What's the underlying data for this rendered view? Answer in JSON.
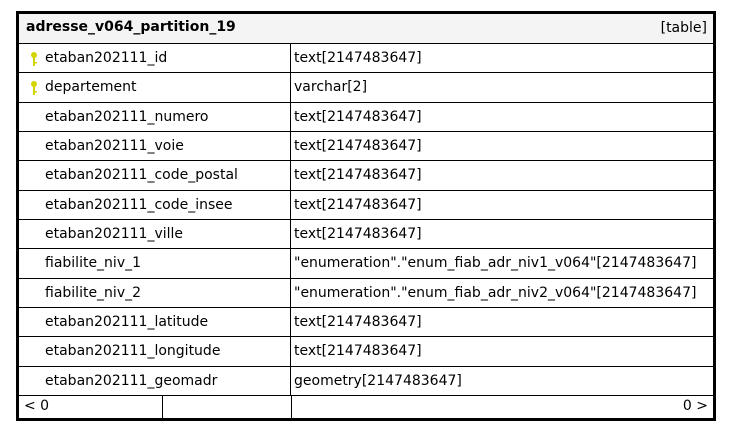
{
  "table": {
    "name": "adresse_v064_partition_19",
    "kind": "[table]",
    "key_color": "#d4d400",
    "columns": [
      {
        "name": "etaban202111_id",
        "type": "text[2147483647]",
        "key": true
      },
      {
        "name": "departement",
        "type": "varchar[2]",
        "key": true
      },
      {
        "name": "etaban202111_numero",
        "type": "text[2147483647]",
        "key": false
      },
      {
        "name": "etaban202111_voie",
        "type": "text[2147483647]",
        "key": false
      },
      {
        "name": "etaban202111_code_postal",
        "type": "text[2147483647]",
        "key": false
      },
      {
        "name": "etaban202111_code_insee",
        "type": "text[2147483647]",
        "key": false
      },
      {
        "name": "etaban202111_ville",
        "type": "text[2147483647]",
        "key": false
      },
      {
        "name": "fiabilite_niv_1",
        "type": "\"enumeration\".\"enum_fiab_adr_niv1_v064\"[2147483647]",
        "key": false
      },
      {
        "name": "fiabilite_niv_2",
        "type": "\"enumeration\".\"enum_fiab_adr_niv2_v064\"[2147483647]",
        "key": false
      },
      {
        "name": "etaban202111_latitude",
        "type": "text[2147483647]",
        "key": false
      },
      {
        "name": "etaban202111_longitude",
        "type": "text[2147483647]",
        "key": false
      },
      {
        "name": "etaban202111_geomadr",
        "type": "geometry[2147483647]",
        "key": false
      }
    ],
    "footer": {
      "parents": "< 0",
      "children": "0 >"
    }
  }
}
